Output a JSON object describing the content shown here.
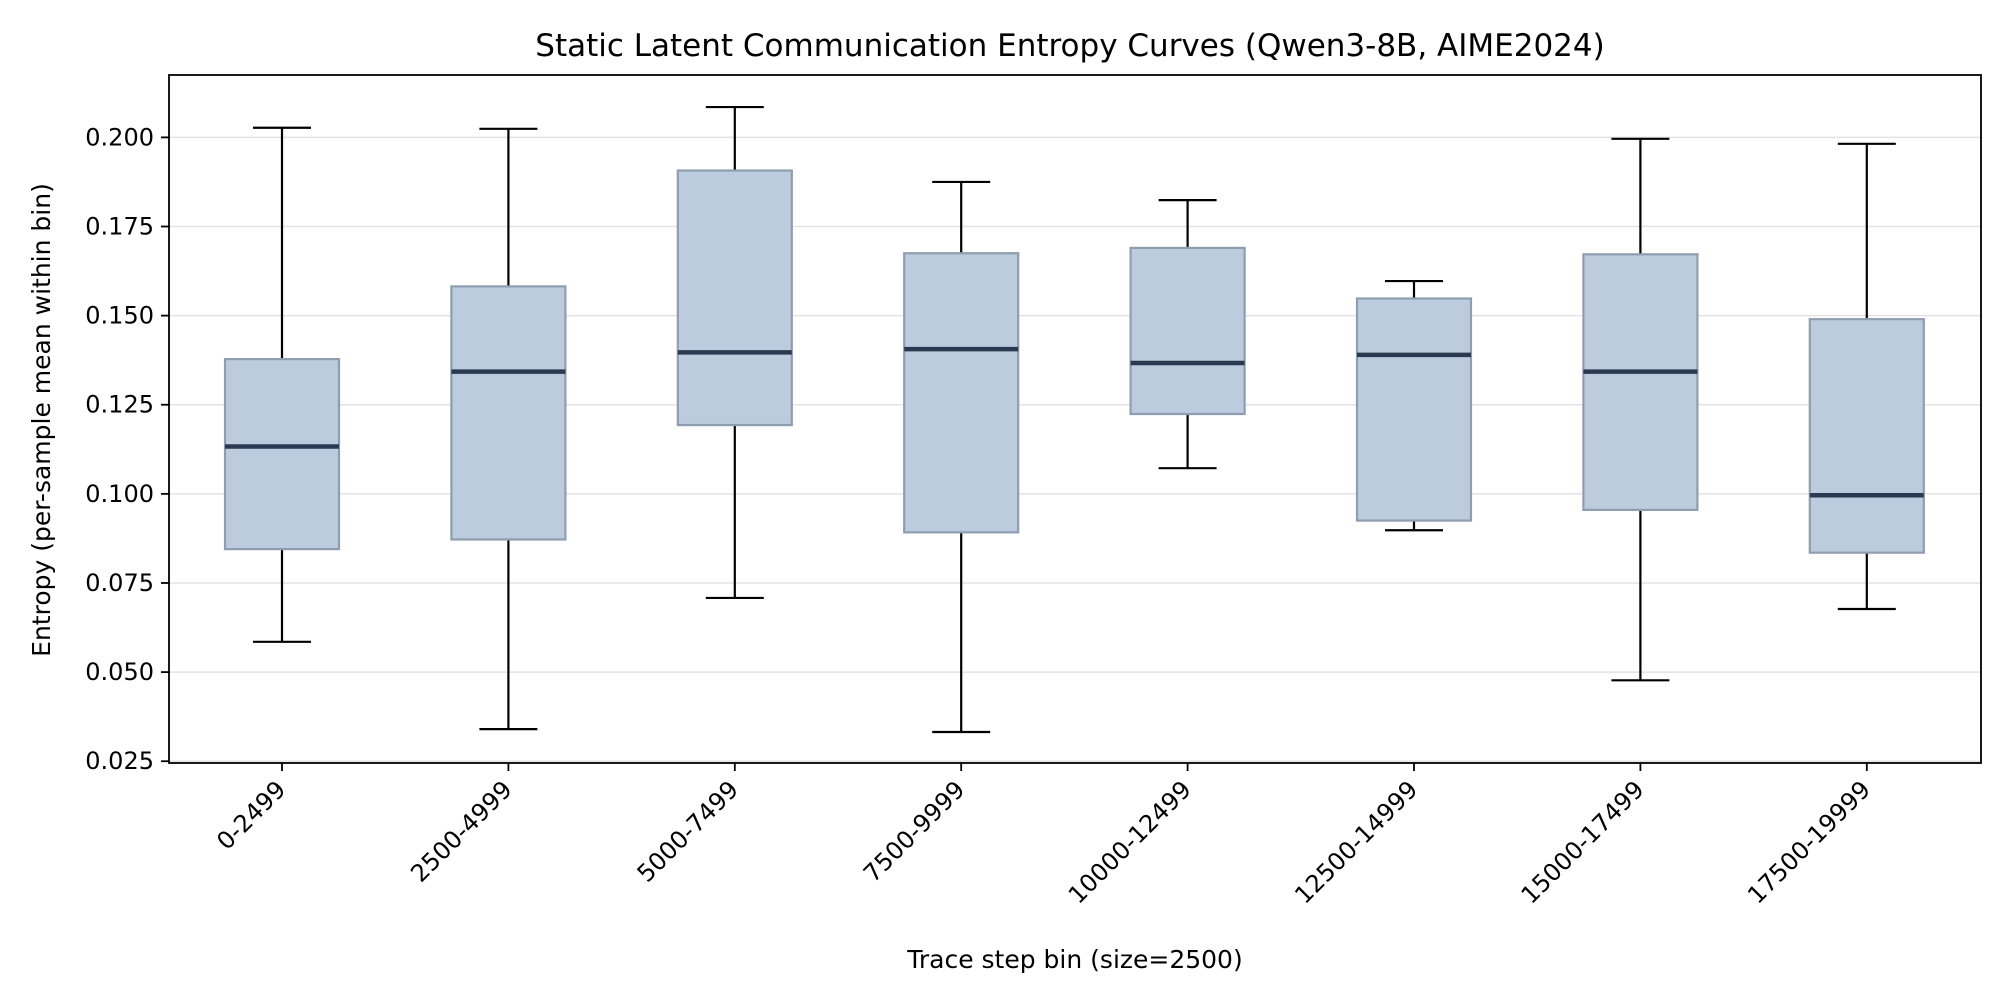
{
  "colors": {
    "box_fill": "#bccbdd",
    "box_edge": "#8f9db0",
    "median": "#2b3a52",
    "whisker": "#000000",
    "grid": "#e3e3e3"
  },
  "chart_data": {
    "type": "box",
    "title": "Static Latent Communication Entropy Curves (Qwen3-8B, AIME2024)",
    "xlabel": "Trace step bin (size=2500)",
    "ylabel": "Entropy (per-sample mean within bin)",
    "ylim": [
      0.0245,
      0.2175
    ],
    "yticks": [
      "0.025",
      "0.050",
      "0.075",
      "0.100",
      "0.125",
      "0.150",
      "0.175",
      "0.200"
    ],
    "ytick_values": [
      0.025,
      0.05,
      0.075,
      0.1,
      0.125,
      0.15,
      0.175,
      0.2
    ],
    "grid": "horizontal",
    "categories": [
      "0-2499",
      "2500-4999",
      "5000-7499",
      "7500-9999",
      "10000-12499",
      "12500-14999",
      "15000-17499",
      "17500-19999"
    ],
    "boxes": [
      {
        "whisker_low": 0.0585,
        "q1": 0.0845,
        "median": 0.1133,
        "q3": 0.1378,
        "whisker_high": 0.2027
      },
      {
        "whisker_low": 0.034,
        "q1": 0.0872,
        "median": 0.1343,
        "q3": 0.1582,
        "whisker_high": 0.2024
      },
      {
        "whisker_low": 0.0708,
        "q1": 0.1193,
        "median": 0.1397,
        "q3": 0.1907,
        "whisker_high": 0.2085
      },
      {
        "whisker_low": 0.0332,
        "q1": 0.0892,
        "median": 0.1406,
        "q3": 0.1675,
        "whisker_high": 0.1875
      },
      {
        "whisker_low": 0.1072,
        "q1": 0.1224,
        "median": 0.1367,
        "q3": 0.169,
        "whisker_high": 0.1824
      },
      {
        "whisker_low": 0.0898,
        "q1": 0.0925,
        "median": 0.139,
        "q3": 0.1548,
        "whisker_high": 0.1597
      },
      {
        "whisker_low": 0.0477,
        "q1": 0.0955,
        "median": 0.1343,
        "q3": 0.1672,
        "whisker_high": 0.1996
      },
      {
        "whisker_low": 0.0677,
        "q1": 0.0835,
        "median": 0.0996,
        "q3": 0.149,
        "whisker_high": 0.1982
      }
    ]
  }
}
